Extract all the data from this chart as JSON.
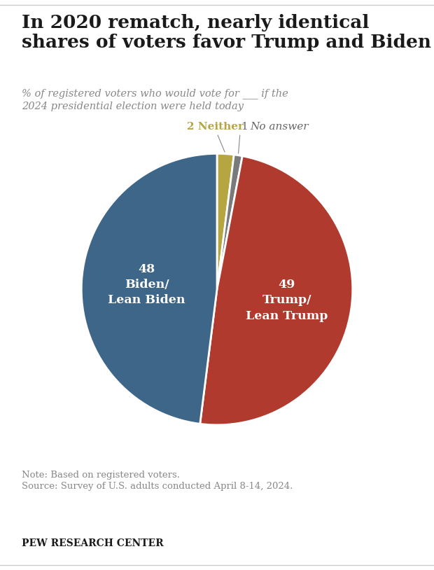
{
  "title": "In 2020 rematch, nearly identical\nshares of voters favor Trump and Biden",
  "subtitle": "% of registered voters who would vote for ___ if the\n2024 presidential election were held today",
  "slices_ordered": [
    2,
    1,
    49,
    48
  ],
  "colors_ordered": [
    "#b5a642",
    "#7a7a7a",
    "#b03a2e",
    "#3d6689"
  ],
  "note": "Note: Based on registered voters.",
  "source": "Source: Survey of U.S. adults conducted April 8-14, 2024.",
  "branding": "PEW RESEARCH CENTER",
  "background_color": "#ffffff",
  "title_color": "#1a1a1a",
  "subtitle_color": "#888888",
  "note_color": "#888888",
  "outer_label_color_neither": "#b5a642",
  "outer_label_color_noanswer": "#666666"
}
